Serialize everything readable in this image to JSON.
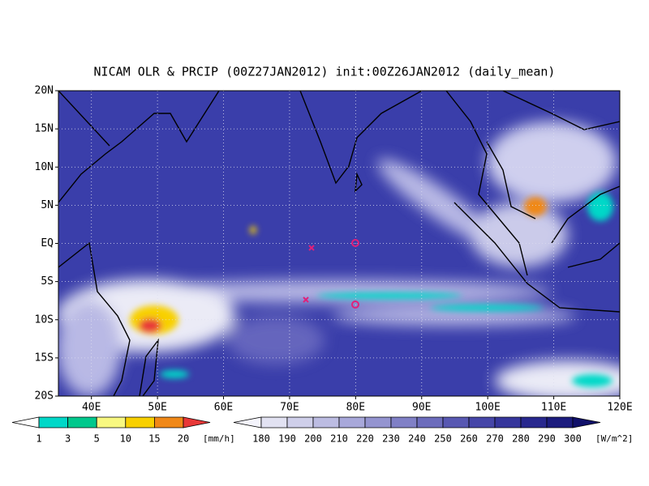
{
  "title": "NICAM OLR & PRCIP (00Z27JAN2012) init:00Z26JAN2012 (daily_mean)",
  "lat_labels": [
    "20N",
    "15N",
    "10N",
    "5N",
    "EQ",
    "5S",
    "10S",
    "15S",
    "20S"
  ],
  "lon_labels": [
    "40E",
    "50E",
    "60E",
    "70E",
    "80E",
    "90E",
    "100E",
    "110E",
    "120E"
  ],
  "precip_colorbar": {
    "labels": [
      "1",
      "3",
      "5",
      "10",
      "15",
      "20"
    ],
    "unit": "[mm/h]",
    "colors": [
      "#ffffff",
      "#00d8c8",
      "#00c88c",
      "#f8f880",
      "#f8d000",
      "#f08818",
      "#e83838"
    ]
  },
  "olr_colorbar": {
    "labels": [
      "180",
      "190",
      "200",
      "210",
      "220",
      "230",
      "240",
      "250",
      "260",
      "270",
      "280",
      "290",
      "300"
    ],
    "unit": "[W/m^2]",
    "colors": [
      "#f4f4fc",
      "#e2e2f2",
      "#cfcfea",
      "#bcbce2",
      "#a8a8da",
      "#9494d0",
      "#8080c6",
      "#6c6cbc",
      "#5858b2",
      "#4646a8",
      "#36369c",
      "#28288e",
      "#1c1c7e",
      "#10106a"
    ]
  }
}
